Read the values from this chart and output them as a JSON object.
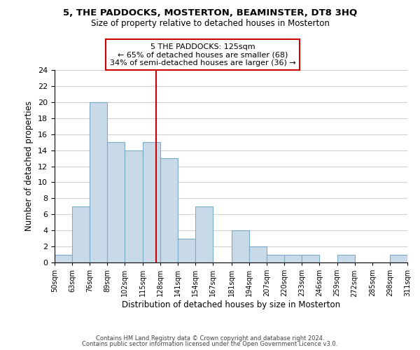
{
  "title": "5, THE PADDOCKS, MOSTERTON, BEAMINSTER, DT8 3HQ",
  "subtitle": "Size of property relative to detached houses in Mosterton",
  "xlabel": "Distribution of detached houses by size in Mosterton",
  "ylabel": "Number of detached properties",
  "bar_color": "#c8d9e8",
  "bar_edge_color": "#7aaac8",
  "bins": [
    50,
    63,
    76,
    89,
    102,
    115,
    128,
    141,
    154,
    167,
    181,
    194,
    207,
    220,
    233,
    246,
    259,
    272,
    285,
    298,
    311
  ],
  "counts": [
    1,
    7,
    20,
    15,
    14,
    15,
    13,
    3,
    7,
    0,
    4,
    2,
    1,
    1,
    1,
    0,
    1,
    0,
    0,
    1
  ],
  "tick_labels": [
    "50sqm",
    "63sqm",
    "76sqm",
    "89sqm",
    "102sqm",
    "115sqm",
    "128sqm",
    "141sqm",
    "154sqm",
    "167sqm",
    "181sqm",
    "194sqm",
    "207sqm",
    "220sqm",
    "233sqm",
    "246sqm",
    "259sqm",
    "272sqm",
    "285sqm",
    "298sqm",
    "311sqm"
  ],
  "ylim": [
    0,
    24
  ],
  "yticks": [
    0,
    2,
    4,
    6,
    8,
    10,
    12,
    14,
    16,
    18,
    20,
    22,
    24
  ],
  "property_value": 125,
  "annotation_title": "5 THE PADDOCKS: 125sqm",
  "annotation_line1": "← 65% of detached houses are smaller (68)",
  "annotation_line2": "34% of semi-detached houses are larger (36) →",
  "vline_color": "#cc0000",
  "annotation_box_edge": "#cc0000",
  "footer1": "Contains HM Land Registry data © Crown copyright and database right 2024.",
  "footer2": "Contains public sector information licensed under the Open Government Licence v3.0.",
  "background_color": "#ffffff",
  "grid_color": "#d0d0d0"
}
